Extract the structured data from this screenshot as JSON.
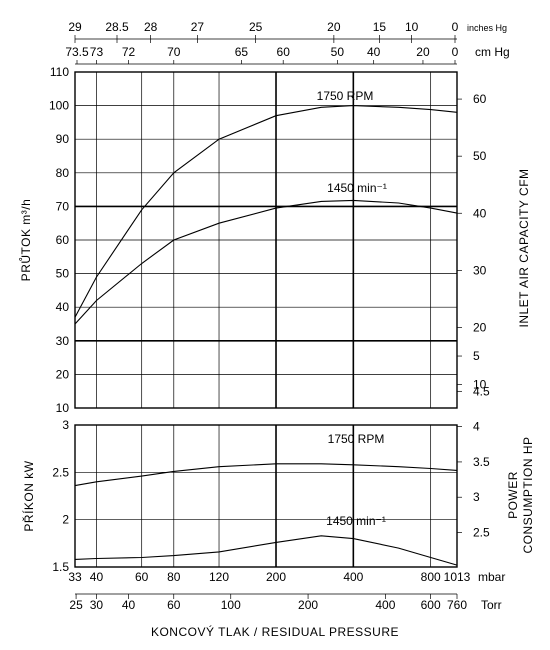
{
  "chart_data": [
    {
      "type": "line",
      "name_ref": "flow",
      "ylabel": "PRŮTOK  m³/h",
      "y2label": "INLET AIR CAPACITY  CFM",
      "ylim": [
        10,
        110
      ],
      "y_ticks": [
        10,
        20,
        30,
        40,
        50,
        60,
        70,
        80,
        90,
        100,
        110
      ],
      "y2_ticks": [
        10,
        20,
        30,
        40,
        50,
        60
      ],
      "xscale": "log",
      "series": [
        {
          "name": "1750 RPM",
          "x": [
            33,
            40,
            60,
            80,
            120,
            200,
            300,
            400,
            600,
            800,
            1013
          ],
          "values": [
            37,
            49,
            69,
            80,
            90,
            97,
            99.5,
            100,
            99.5,
            98.8,
            98
          ]
        },
        {
          "name": "1450 min⁻¹",
          "x": [
            33,
            40,
            60,
            80,
            120,
            200,
            300,
            400,
            600,
            800,
            1013
          ],
          "values": [
            35,
            42,
            53,
            60,
            65,
            69.5,
            71.5,
            71.8,
            71,
            69.5,
            68
          ]
        }
      ]
    },
    {
      "type": "line",
      "name_ref": "power",
      "ylabel": "PŘÍKON  kW",
      "y2label": [
        "POWER",
        "CONSUMPTION  HP"
      ],
      "ylim": [
        1.5,
        3
      ],
      "y_ticks": [
        1.5,
        2,
        2.5,
        3
      ],
      "y_tick_labels": [
        "1.5",
        "2",
        "2.5",
        "3"
      ],
      "y2_ticks": [
        2.5,
        3,
        3.5,
        4,
        4.5,
        5
      ],
      "y2_tick_labels": [
        "2.5",
        "3",
        "3.5",
        "4",
        "4.5",
        "5"
      ],
      "xscale": "log",
      "series": [
        {
          "name": "1750 RPM",
          "x": [
            33,
            40,
            60,
            80,
            120,
            200,
            300,
            400,
            600,
            800,
            1013
          ],
          "values": [
            2.36,
            2.4,
            2.46,
            2.51,
            2.56,
            2.59,
            2.59,
            2.58,
            2.56,
            2.54,
            2.52
          ]
        },
        {
          "name": "1450 min⁻¹",
          "x": [
            33,
            40,
            60,
            80,
            120,
            200,
            300,
            400,
            600,
            800,
            1013
          ],
          "values": [
            1.58,
            1.59,
            1.6,
            1.62,
            1.66,
            1.76,
            1.83,
            1.8,
            1.7,
            1.6,
            1.52
          ]
        }
      ]
    }
  ],
  "axes": {
    "inches_hg": {
      "unit": "inches Hg",
      "ticks": [
        "29",
        "28.5",
        "28",
        "27",
        "25",
        "20",
        "15",
        "10",
        "0"
      ]
    },
    "cm_hg": {
      "unit": "cm Hg",
      "ticks": [
        "73.5",
        "73",
        "72",
        "70",
        "65",
        "60",
        "50",
        "40",
        "20",
        "0"
      ]
    },
    "mbar": {
      "unit": "mbar",
      "ticks": [
        "33",
        "40",
        "60",
        "80",
        "120",
        "200",
        "400",
        "800",
        "1013"
      ]
    },
    "torr": {
      "unit": "Torr",
      "ticks": [
        "25",
        "30",
        "40",
        "60",
        "100",
        "200",
        "400",
        "600",
        "760"
      ]
    },
    "xlabel": "KONCOVÝ TLAK / RESIDUAL PRESSURE"
  },
  "colors": {
    "ink": "#000000",
    "paper": "#ffffff"
  }
}
